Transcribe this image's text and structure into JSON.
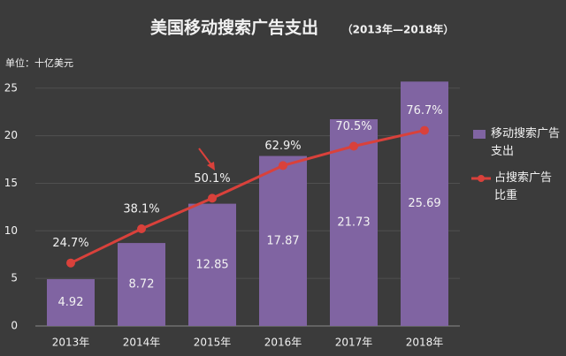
{
  "chart_data": {
    "type": "bar",
    "title": "美国移动搜索广告支出",
    "subtitle": "（2013年—2018年）",
    "unit_label": "单位：十亿美元",
    "categories": [
      "2013年",
      "2014年",
      "2015年",
      "2016年",
      "2017年",
      "2018年"
    ],
    "series": [
      {
        "name": "移动搜索广告支出",
        "type": "bar",
        "color": "#8064a2",
        "values": [
          4.92,
          8.72,
          12.85,
          17.87,
          21.73,
          25.69
        ]
      },
      {
        "name": "占搜索广告比重",
        "type": "line",
        "axis": "y2",
        "color": "#d9413b",
        "values": [
          24.7,
          38.1,
          50.1,
          62.9,
          70.5,
          76.7
        ],
        "value_labels": [
          "24.7%",
          "38.1%",
          "50.1%",
          "62.9%",
          "70.5%",
          "76.7%"
        ]
      }
    ],
    "ylim": [
      0,
      26
    ],
    "yticks": [
      0,
      5,
      10,
      15,
      20,
      25
    ],
    "y2lim": [
      0,
      97
    ],
    "grid": true
  }
}
